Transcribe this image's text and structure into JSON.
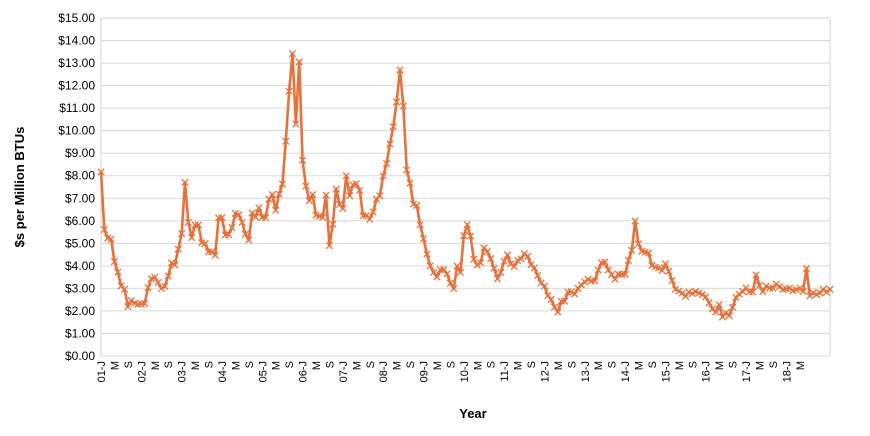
{
  "chart_data": {
    "type": "line",
    "title": "",
    "xlabel": "Year",
    "ylabel": "$s per Million BTUs",
    "ylim": [
      0,
      15
    ],
    "yticks": [
      "$0.00",
      "$1.00",
      "$2.00",
      "$3.00",
      "$4.00",
      "$5.00",
      "$6.00",
      "$7.00",
      "$8.00",
      "$9.00",
      "$10.00",
      "$11.00",
      "$12.00",
      "$13.00",
      "$14.00",
      "$15.00"
    ],
    "xticks": [
      "01-J",
      "M",
      "S",
      "02-J",
      "M",
      "S",
      "03-J",
      "M",
      "S",
      "04-J",
      "M",
      "S",
      "05-J",
      "M",
      "S",
      "06-J",
      "M",
      "S",
      "07-J",
      "M",
      "S",
      "08-J",
      "M",
      "S",
      "09-J",
      "M",
      "S",
      "10-J",
      "M",
      "S",
      "11-J",
      "M",
      "S",
      "12-J",
      "M",
      "S",
      "13-J",
      "M",
      "S",
      "14-J",
      "M",
      "S",
      "15-J",
      "M",
      "S",
      "16-J",
      "M",
      "S",
      "17-J",
      "M",
      "S",
      "18-J",
      "M"
    ],
    "grid": "horizontal",
    "line_color": "#E8703A",
    "marker": "x",
    "series": [
      {
        "values": [
          8.17,
          5.61,
          5.23,
          5.19,
          4.19,
          3.72,
          3.11,
          2.97,
          2.19,
          2.46,
          2.34,
          2.3,
          2.32,
          2.32,
          3.03,
          3.43,
          3.5,
          3.26,
          2.99,
          3.09,
          3.55,
          4.13,
          4.04,
          4.74,
          5.43,
          7.71,
          5.93,
          5.26,
          5.81,
          5.82,
          5.03,
          4.99,
          4.62,
          4.63,
          4.47,
          6.13,
          6.14,
          5.37,
          5.39,
          5.7,
          6.33,
          6.27,
          5.93,
          5.41,
          5.15,
          6.35,
          6.17,
          6.58,
          6.15,
          6.14,
          6.96,
          7.16,
          6.47,
          7.18,
          7.63,
          9.53,
          11.75,
          13.42,
          10.3,
          13.05,
          8.69,
          7.54,
          6.89,
          7.16,
          6.25,
          6.21,
          6.15,
          7.14,
          4.9,
          5.85,
          7.41,
          6.73,
          6.55,
          8.0,
          7.11,
          7.6,
          7.64,
          7.35,
          6.22,
          6.24,
          6.07,
          6.39,
          6.96,
          7.11,
          7.99,
          8.54,
          9.41,
          10.18,
          11.27,
          12.69,
          11.09,
          8.26,
          7.67,
          6.74,
          6.68,
          5.82,
          5.21,
          4.52,
          4.0,
          3.71,
          3.51,
          3.83,
          3.83,
          3.65,
          3.23,
          2.99,
          3.99,
          3.71,
          5.34,
          5.83,
          5.32,
          4.29,
          4.03,
          4.14,
          4.8,
          4.63,
          4.32,
          3.89,
          3.43,
          3.71,
          4.2,
          4.49,
          4.09,
          3.97,
          4.24,
          4.31,
          4.54,
          4.42,
          4.05,
          3.91,
          3.57,
          3.24,
          3.1,
          2.68,
          2.51,
          2.17,
          1.95,
          2.43,
          2.43,
          2.84,
          2.85,
          2.75,
          3.0,
          3.15,
          3.29,
          3.4,
          3.33,
          3.33,
          3.81,
          4.14,
          4.17,
          3.82,
          3.61,
          3.41,
          3.64,
          3.62,
          3.62,
          4.24,
          4.69,
          5.99,
          4.98,
          4.65,
          4.61,
          4.57,
          4.02,
          3.94,
          3.91,
          3.79,
          4.09,
          3.76,
          3.35,
          2.96,
          2.88,
          2.79,
          2.65,
          2.84,
          2.77,
          2.86,
          2.8,
          2.73,
          2.62,
          2.36,
          2.09,
          1.95,
          2.28,
          1.73,
          1.92,
          1.79,
          2.16,
          2.6,
          2.74,
          2.86,
          3.02,
          2.85,
          2.84,
          3.6,
          3.13,
          2.86,
          3.1,
          3.01,
          3.01,
          3.19,
          3.08,
          2.95,
          2.98,
          3.01,
          2.9,
          2.94,
          3.01,
          2.86,
          3.88,
          2.67,
          2.81,
          2.72,
          2.8,
          2.96,
          2.83,
          2.96
        ]
      }
    ]
  }
}
